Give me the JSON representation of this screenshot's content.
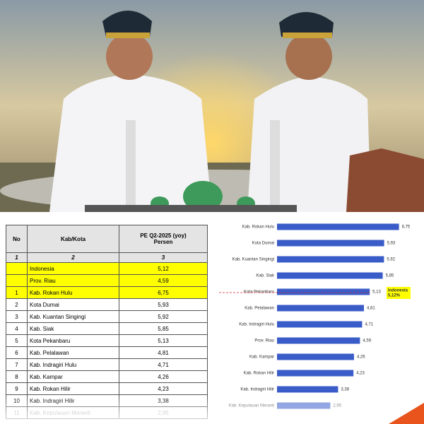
{
  "table": {
    "header": {
      "no": "No",
      "name": "Kab/Kota",
      "value": "PE Q2-2025 (yoy)",
      "unit": "Persen"
    },
    "column_numbers": [
      1,
      2,
      3
    ],
    "rows": [
      [
        null,
        "Indonesia",
        "5,12"
      ],
      [
        null,
        "Prov. Riau",
        "4,59"
      ],
      [
        1,
        "Kab. Rokan Hulu",
        "6,75"
      ],
      [
        2,
        "Kota Dumai",
        "5,93"
      ],
      [
        3,
        "Kab. Kuantan Singingi",
        "5,92"
      ],
      [
        4,
        "Kab. Siak",
        "5,85"
      ],
      [
        5,
        "Kota Pekanbaru",
        "5,13"
      ],
      [
        6,
        "Kab. Pelalawan",
        "4,81"
      ],
      [
        7,
        "Kab. Indragiri Hulu",
        "4,71"
      ],
      [
        8,
        "Kab. Kampar",
        "4,26"
      ],
      [
        9,
        "Kab. Rokan Hilir",
        "4,23"
      ],
      [
        10,
        "Kab. Indragiri Hilir",
        "3,38"
      ],
      [
        11,
        "Kab. Kepulauan Meranti",
        "2,95"
      ]
    ]
  },
  "chart_data": {
    "type": "hbar",
    "color": "#3a5cc8",
    "categories": [
      "Kab. Rokan Hulu",
      "Kota Dumai",
      "Kab. Kuantan Singingi",
      "Kab. Siak",
      "Kota Pekanbaru",
      "Kab. Pelalawan",
      "Kab. Indragiri Hulu",
      "Prov. Riau",
      "Kab. Kampar",
      "Kab. Rokan Hilir",
      "Kab. Indragiri Hilir",
      "Kab. Kepulauan Meranti"
    ],
    "values": [
      6.75,
      5.93,
      5.92,
      5.85,
      5.13,
      4.81,
      4.71,
      4.59,
      4.26,
      4.23,
      3.38,
      2.95
    ],
    "value_labels": [
      "6,75",
      "5,93",
      "5,92",
      "5,85",
      "5,13",
      "4,81",
      "4,71",
      "4,59",
      "4,26",
      "4,23",
      "3,38",
      "2,95"
    ],
    "xlim": [
      0,
      7
    ],
    "reference": {
      "value": 5.12,
      "label": "Indonesia",
      "value_label": "5,12%",
      "color": "#d62828"
    }
  }
}
